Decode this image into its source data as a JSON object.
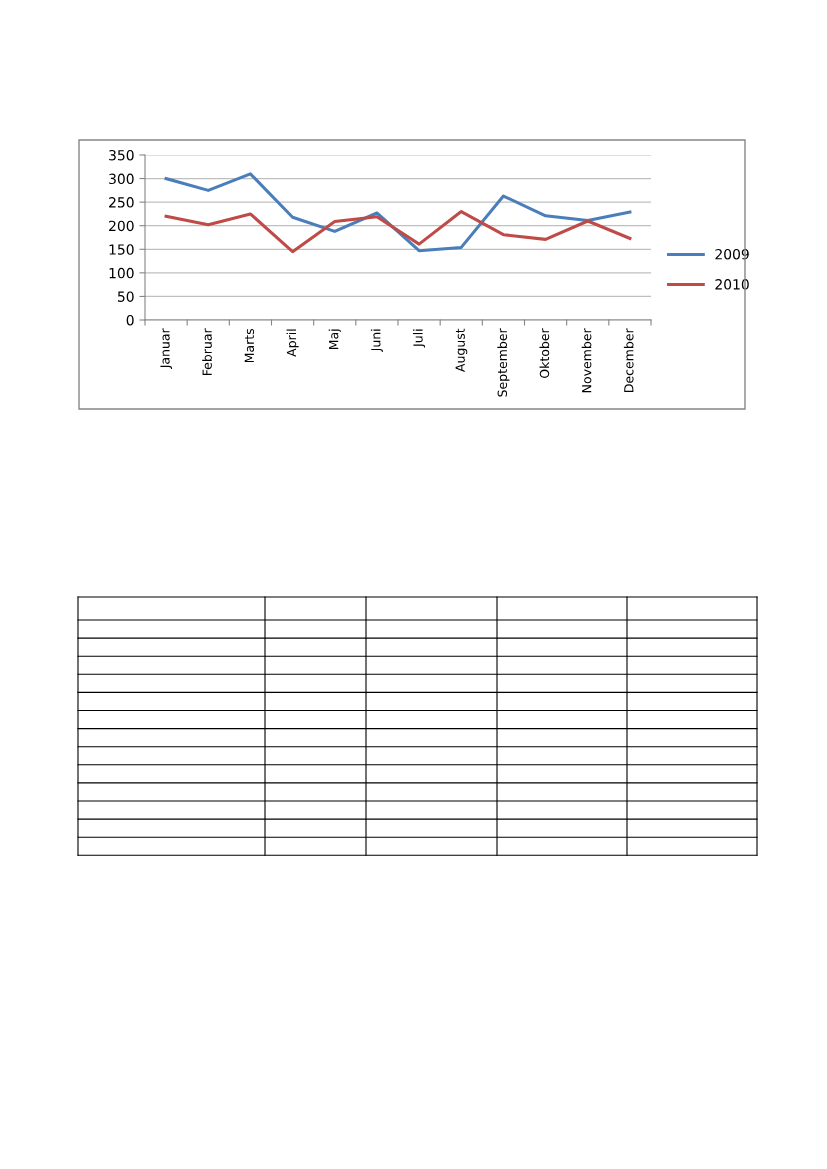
{
  "chart_data": {
    "type": "line",
    "categories": [
      "Januar",
      "Februar",
      "Marts",
      "April",
      "Maj",
      "Juni",
      "Juli",
      "August",
      "September",
      "Oktober",
      "November",
      "December"
    ],
    "series": [
      {
        "name": "2009",
        "color": "#4a7ebb",
        "values": [
          300,
          275,
          310,
          218,
          188,
          227,
          147,
          154,
          263,
          221,
          211,
          229
        ]
      },
      {
        "name": "2010",
        "color": "#be4b48",
        "values": [
          220,
          202,
          225,
          145,
          209,
          219,
          161,
          230,
          181,
          171,
          210,
          173
        ]
      }
    ],
    "ylim": [
      0,
      350
    ],
    "yticks": [
      0,
      50,
      100,
      150,
      200,
      250,
      300,
      350
    ],
    "grid": "y",
    "legend": "right",
    "marker": "none",
    "line_style": "solid"
  }
}
